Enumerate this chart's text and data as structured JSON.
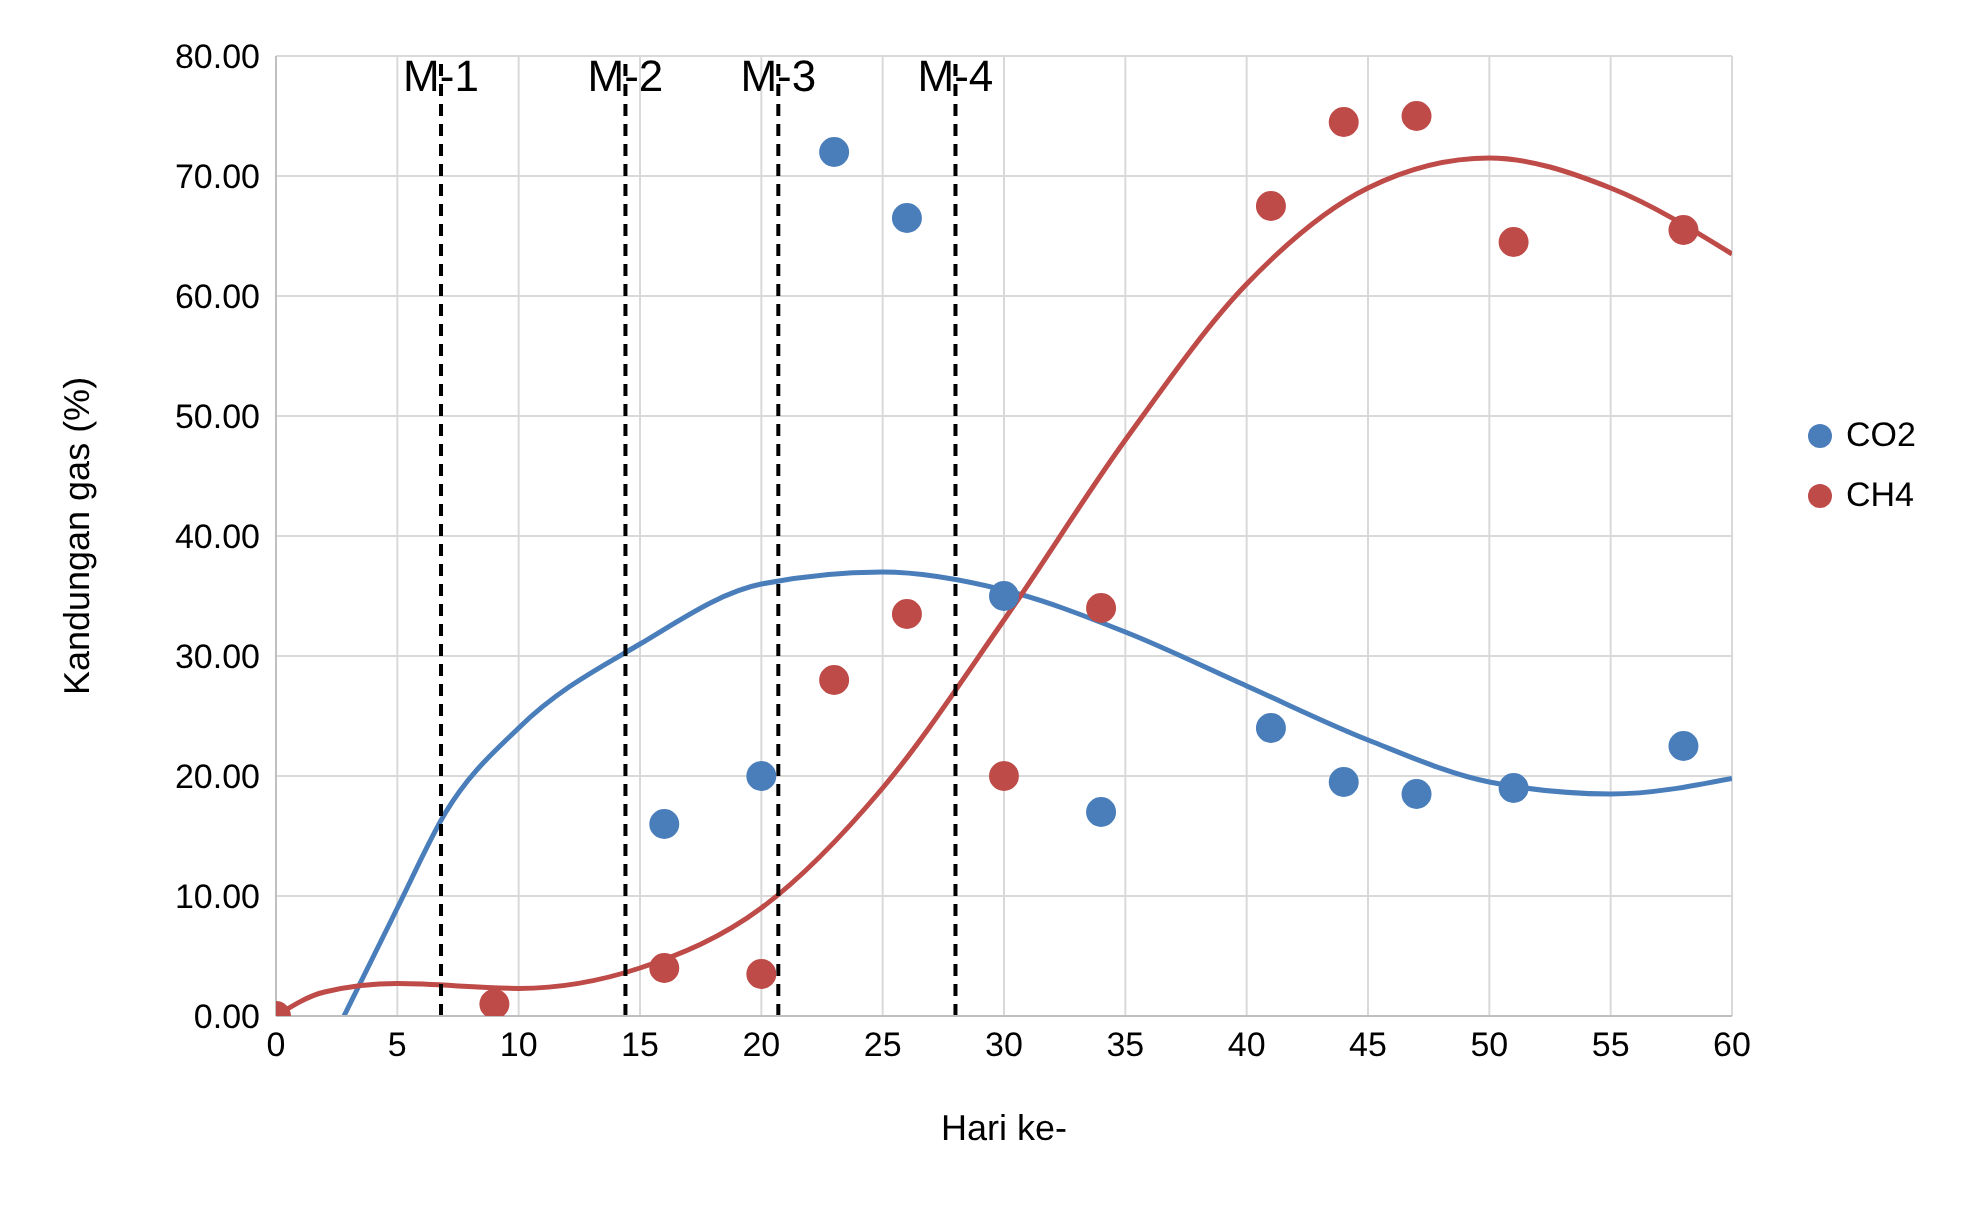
{
  "chart_data": {
    "type": "scatter",
    "xlabel": "Hari ke-",
    "ylabel": "Kandungan gas (%)",
    "xlim": [
      0,
      60
    ],
    "xticks": [
      0,
      5,
      10,
      15,
      20,
      25,
      30,
      35,
      40,
      45,
      50,
      55,
      60
    ],
    "ylim": [
      0,
      80
    ],
    "yticks": [
      {
        "value": 0,
        "label": "0.00"
      },
      {
        "value": 10,
        "label": "10.00"
      },
      {
        "value": 20,
        "label": "20.00"
      },
      {
        "value": 30,
        "label": "30.00"
      },
      {
        "value": 40,
        "label": "40.00"
      },
      {
        "value": 50,
        "label": "50.00"
      },
      {
        "value": 60,
        "label": "60.00"
      },
      {
        "value": 70,
        "label": "70.00"
      },
      {
        "value": 80,
        "label": "80.00"
      }
    ],
    "grid": true,
    "legend": "right",
    "marker": "circle",
    "series": [
      {
        "name": "CO2",
        "color": "#4a7ebb",
        "x": [
          16,
          20,
          23,
          26,
          30,
          34,
          41,
          44,
          47,
          51,
          58
        ],
        "values": [
          16,
          20,
          72,
          66.5,
          35,
          17,
          24,
          19.5,
          18.5,
          19,
          22.5
        ]
      },
      {
        "name": "CH4",
        "color": "#be4b48",
        "x": [
          0,
          9,
          16,
          20,
          23,
          26,
          30,
          34,
          41,
          44,
          47,
          51,
          58
        ],
        "values": [
          0,
          1,
          4,
          3.5,
          28,
          33.5,
          20,
          34,
          67.5,
          74.5,
          75,
          64.5,
          65.5
        ]
      },
      {
        "type": "line",
        "color": "#4a7ebb",
        "marker": "none",
        "x": [
          2.8,
          5,
          7,
          10,
          15,
          20,
          25,
          30,
          35,
          40,
          45,
          50,
          55,
          60
        ],
        "values": [
          0,
          9,
          17,
          24,
          31,
          36,
          37,
          35.5,
          32,
          27.5,
          23,
          19.5,
          18.5,
          19.8
        ]
      },
      {
        "type": "line",
        "color": "#be4b48",
        "marker": "none",
        "x": [
          0,
          2,
          5,
          10,
          15,
          20,
          25,
          30,
          35,
          40,
          45,
          50,
          55,
          60
        ],
        "values": [
          0,
          2,
          2.7,
          2.3,
          4,
          9,
          19,
          33,
          48,
          61,
          69,
          71.5,
          69,
          63.5
        ]
      }
    ],
    "ref_lines": [
      {
        "axis": "x",
        "value": 6.8,
        "label": "M-1",
        "color": "#000000",
        "line_style": "dashed"
      },
      {
        "axis": "x",
        "value": 14.4,
        "label": "M-2",
        "color": "#000000",
        "line_style": "dashed"
      },
      {
        "axis": "x",
        "value": 20.7,
        "label": "M-3",
        "color": "#000000",
        "line_style": "dashed"
      },
      {
        "axis": "x",
        "value": 28,
        "label": "M-4",
        "color": "#000000",
        "line_style": "dashed"
      }
    ]
  }
}
